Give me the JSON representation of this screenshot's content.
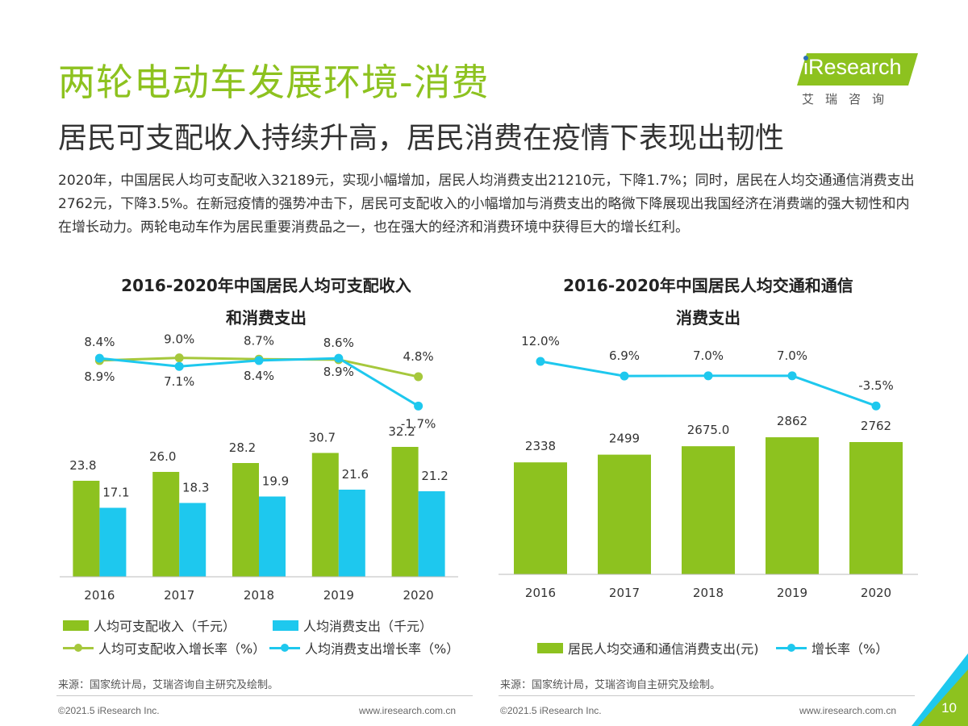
{
  "header": {
    "title": "两轮电动车发展环境-消费",
    "subtitle": "居民可支配收入持续升高，居民消费在疫情下表现出韧性",
    "body": "2020年，中国居民人均可支配收入32189元，实现小幅增加，居民人均消费支出21210元，下降1.7%；同时，居民在人均交通通信消费支出2762元，下降3.5%。在新冠疫情的强势冲击下，居民可支配收入的小幅增加与消费支出的略微下降展现出我国经济在消费端的强大韧性和内在增长动力。两轮电动车作为居民重要消费品之一，也在强大的经济和消费环境中获得巨大的增长红利。"
  },
  "logo": {
    "text": "iResearch",
    "cn": "艾瑞咨询"
  },
  "colors": {
    "green": "#8DC21F",
    "blue": "#1EC8EE",
    "lightGreen": "#A6C83C",
    "text": "#333333"
  },
  "chart_data": [
    {
      "type": "bar",
      "title_line1": "2016-2020年中国居民人均可支配收入",
      "title_line2": "和消费支出",
      "categories": [
        "2016",
        "2017",
        "2018",
        "2019",
        "2020"
      ],
      "series": [
        {
          "name": "人均可支配收入（千元）",
          "kind": "bar",
          "values": [
            23.8,
            26.0,
            28.2,
            30.7,
            32.2
          ],
          "labels": [
            "23.8",
            "26.0",
            "28.2",
            "30.7",
            "32.2"
          ]
        },
        {
          "name": "人均消费支出（千元）",
          "kind": "bar",
          "values": [
            17.1,
            18.3,
            19.9,
            21.6,
            21.2
          ],
          "labels": [
            "17.1",
            "18.3",
            "19.9",
            "21.6",
            "21.2"
          ]
        },
        {
          "name": "人均可支配收入增长率（%）",
          "kind": "line",
          "values": [
            8.4,
            9.0,
            8.7,
            8.6,
            4.8
          ],
          "labels": [
            "8.4%",
            "9.0%",
            "8.7%",
            "8.6%",
            "4.8%"
          ]
        },
        {
          "name": "人均消费支出增长率（%）",
          "kind": "line",
          "values": [
            8.9,
            7.1,
            8.4,
            8.9,
            -1.7
          ],
          "labels": [
            "8.9%",
            "7.1%",
            "8.4%",
            "8.9%",
            "-1.7%"
          ]
        }
      ],
      "ylim_bar": [
        0,
        35
      ],
      "ylim_line": [
        -2,
        10
      ],
      "legend_position": "bottom"
    },
    {
      "type": "bar",
      "title_line1": "2016-2020年中国居民人均交通和通信",
      "title_line2": "消费支出",
      "categories": [
        "2016",
        "2017",
        "2018",
        "2019",
        "2020"
      ],
      "series": [
        {
          "name": "居民人均交通和通信消费支出(元)",
          "kind": "bar",
          "values": [
            2338,
            2499,
            2675.0,
            2862,
            2762
          ],
          "labels": [
            "2338",
            "2499",
            "2675.0",
            "2862",
            "2762"
          ]
        },
        {
          "name": "增长率（%）",
          "kind": "line",
          "values": [
            12.0,
            6.9,
            7.0,
            7.0,
            -3.5
          ],
          "labels": [
            "12.0%",
            "6.9%",
            "7.0%",
            "7.0%",
            "-3.5%"
          ]
        }
      ],
      "ylim_bar": [
        0,
        3200
      ],
      "ylim_line": [
        -4,
        12
      ],
      "legend_position": "bottom"
    }
  ],
  "sources": {
    "left": "来源：国家统计局，艾瑞咨询自主研究及绘制。",
    "right": "来源：国家统计局，艾瑞咨询自主研究及绘制。"
  },
  "footer": {
    "copyright": "©2021.5 iResearch Inc.",
    "url": "www.iresearch.com.cn",
    "page": "10"
  }
}
